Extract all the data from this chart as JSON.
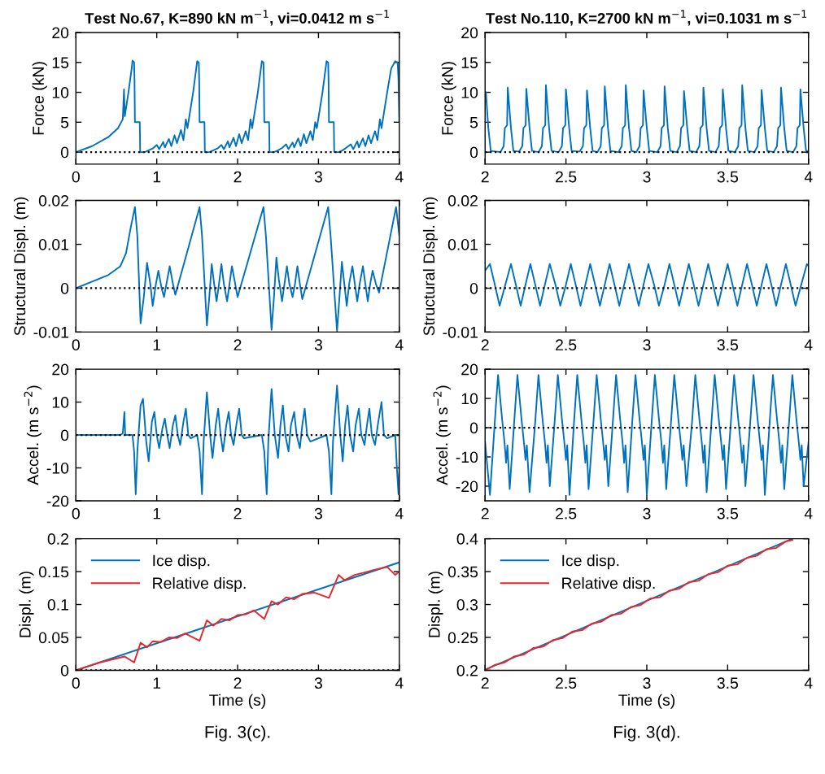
{
  "chart_data": [
    {
      "type": "line",
      "title": "Test No.67, K=890 kN m$^{−1}$, vi=0.0412 m s$^{−1}$",
      "ylabel": "Force (kN)",
      "xlim": [
        0,
        4
      ],
      "xticks": [
        0,
        1,
        2,
        3,
        4
      ],
      "ylim": [
        -2,
        20
      ],
      "yticks": [
        0,
        5,
        10,
        15,
        20
      ],
      "grid": false,
      "ref_lines": [
        {
          "axis": "y",
          "value": 0,
          "color": "#000000",
          "line_style": "dotted"
        }
      ],
      "series": [
        {
          "color": "#0072bd",
          "x": [
            0,
            0.2,
            0.4,
            0.52,
            0.58,
            0.595,
            0.605,
            0.65,
            0.69,
            0.7,
            0.72,
            0.725,
            0.73,
            0.79,
            0.795,
            0.85,
            0.9,
            0.95,
            1.0,
            1.03,
            1.08,
            1.1,
            1.15,
            1.18,
            1.22,
            1.25,
            1.3,
            1.33,
            1.36,
            1.38,
            1.45,
            1.5,
            1.52,
            1.525,
            1.53,
            1.59,
            1.595,
            1.65,
            1.7,
            1.75,
            1.8,
            1.83,
            1.88,
            1.9,
            1.95,
            1.98,
            2.02,
            2.05,
            2.1,
            2.13,
            2.16,
            2.18,
            2.25,
            2.3,
            2.32,
            2.325,
            2.33,
            2.39,
            2.395,
            2.45,
            2.5,
            2.55,
            2.6,
            2.63,
            2.68,
            2.7,
            2.75,
            2.78,
            2.82,
            2.85,
            2.9,
            2.93,
            2.96,
            2.98,
            3.05,
            3.1,
            3.12,
            3.125,
            3.13,
            3.19,
            3.195,
            3.25,
            3.3,
            3.35,
            3.4,
            3.43,
            3.48,
            3.5,
            3.55,
            3.58,
            3.62,
            3.65,
            3.7,
            3.73,
            3.76,
            3.78,
            3.85,
            3.9,
            3.95,
            3.98,
            3.99,
            4.0
          ],
          "values": [
            0,
            1,
            2.5,
            4,
            5.5,
            10.5,
            6,
            10,
            14,
            15.3,
            15,
            12,
            5,
            5,
            0,
            0,
            0.3,
            0.6,
            1.2,
            0.5,
            1.7,
            0.8,
            2.2,
            1,
            2.8,
            1.5,
            3.7,
            2,
            5.5,
            4,
            10,
            15.2,
            15,
            12,
            5,
            5,
            0,
            0,
            0.3,
            0.6,
            1.2,
            0.5,
            1.8,
            0.8,
            2.4,
            1,
            3,
            1.5,
            3.5,
            2,
            5.5,
            4,
            10,
            15.2,
            15,
            12,
            5,
            5,
            0,
            0,
            0.3,
            0.7,
            1.3,
            0.5,
            1.6,
            0.8,
            2.3,
            1,
            3,
            1.5,
            3.5,
            2,
            5,
            4,
            10,
            15.2,
            15,
            12,
            5,
            5,
            0,
            0,
            0.3,
            0.8,
            1.3,
            0.5,
            1.8,
            0.8,
            2.3,
            1,
            2.8,
            1.5,
            3.5,
            2,
            5.5,
            4,
            10,
            14,
            15.2,
            15,
            12,
            5
          ]
        }
      ]
    },
    {
      "type": "line",
      "title": "Test No.110, K=2700 kN m$^{−1}$, vi=0.1031 m s$^{−1}$",
      "ylabel": "Force (kN)",
      "xlim": [
        2,
        4
      ],
      "xticks": [
        2,
        2.5,
        3,
        3.5,
        4
      ],
      "ylim": [
        -2,
        20
      ],
      "yticks": [
        0,
        5,
        10,
        15,
        20
      ],
      "grid": false,
      "ref_lines": [
        {
          "axis": "y",
          "value": 0,
          "color": "#000000",
          "line_style": "dotted"
        }
      ],
      "series": [
        {
          "color": "#0072bd",
          "x": [
            2.0,
            2.005,
            2.02,
            2.035,
            2.095,
            2.115,
            2.122,
            2.136,
            2.14,
            2.16,
            2.175,
            2.21,
            2.23,
            2.237,
            2.251,
            2.255,
            2.275,
            2.29,
            2.331,
            2.351,
            2.358,
            2.372,
            2.376,
            2.396,
            2.411,
            2.455,
            2.475,
            2.482,
            2.496,
            2.5,
            2.52,
            2.535,
            2.585,
            2.605,
            2.612,
            2.626,
            2.63,
            2.65,
            2.665,
            2.695,
            2.715,
            2.722,
            2.736,
            2.74,
            2.76,
            2.775,
            2.825,
            2.845,
            2.852,
            2.866,
            2.87,
            2.89,
            2.905,
            2.935,
            2.955,
            2.962,
            2.976,
            2.98,
            3.0,
            3.015,
            3.065,
            3.085,
            3.092,
            3.106,
            3.11,
            3.13,
            3.145,
            3.185,
            3.205,
            3.212,
            3.226,
            3.23,
            3.25,
            3.265,
            3.305,
            3.325,
            3.332,
            3.346,
            3.35,
            3.37,
            3.385,
            3.425,
            3.445,
            3.452,
            3.466,
            3.47,
            3.49,
            3.505,
            3.545,
            3.565,
            3.572,
            3.586,
            3.59,
            3.61,
            3.625,
            3.665,
            3.685,
            3.692,
            3.706,
            3.71,
            3.73,
            3.745,
            3.785,
            3.805,
            3.812,
            3.826,
            3.83,
            3.85,
            3.865,
            3.905,
            3.925,
            3.932,
            3.946,
            3.95,
            3.97,
            3.985,
            4.0
          ],
          "values": [
            9,
            10,
            4,
            0.2,
            0,
            1,
            4,
            4.5,
            10.8,
            4,
            0.2,
            0.1,
            1,
            4,
            4.5,
            10.6,
            4,
            0.2,
            0,
            1,
            4,
            4.5,
            11.2,
            4,
            0.2,
            0,
            1,
            4,
            4.5,
            10.5,
            4,
            0.2,
            0.1,
            1,
            4,
            4.5,
            10.3,
            4,
            0.2,
            0,
            1,
            4,
            4.5,
            11,
            4,
            0.2,
            0,
            1,
            4,
            4.5,
            11.2,
            4,
            0.2,
            0,
            1,
            4,
            4.5,
            10.3,
            4,
            0.2,
            0,
            1,
            4,
            4.5,
            11,
            4,
            0.2,
            0,
            1,
            4,
            4.5,
            10.2,
            4,
            0.2,
            0,
            1,
            4,
            4.5,
            10.8,
            4,
            0.2,
            0,
            1,
            4,
            4.5,
            10.5,
            4,
            0.2,
            0,
            1,
            4,
            4.5,
            11.2,
            4,
            0.2,
            0,
            1,
            4,
            4.5,
            10.4,
            4,
            0.2,
            0,
            1,
            4,
            4.5,
            10.8,
            4,
            0.2,
            0,
            1,
            4,
            4.5,
            10.5,
            4,
            0.2,
            0.2
          ]
        }
      ]
    },
    {
      "type": "line",
      "ylabel": "Structural Displ. (m)",
      "xlim": [
        0,
        4
      ],
      "xticks": [
        0,
        1,
        2,
        3,
        4
      ],
      "ylim": [
        -0.01,
        0.02
      ],
      "yticks": [
        -0.01,
        0,
        0.01,
        0.02
      ],
      "grid": false,
      "ref_lines": [
        {
          "axis": "y",
          "value": 0,
          "color": "#000000",
          "line_style": "dotted"
        }
      ],
      "series": [
        {
          "color": "#0072bd",
          "x": [
            0,
            0.2,
            0.4,
            0.55,
            0.62,
            0.68,
            0.73,
            0.76,
            0.8,
            0.84,
            0.88,
            0.92,
            0.95,
            0.99,
            1.02,
            1.06,
            1.09,
            1.13,
            1.16,
            1.2,
            1.23,
            1.53,
            1.56,
            1.62,
            1.65,
            1.68,
            1.71,
            1.74,
            1.77,
            1.8,
            1.83,
            1.87,
            1.9,
            1.93,
            1.97,
            2.0,
            2.32,
            2.35,
            2.42,
            2.45,
            2.48,
            2.51,
            2.55,
            2.58,
            2.61,
            2.64,
            2.68,
            2.71,
            2.74,
            2.77,
            2.8,
            3.12,
            3.15,
            3.23,
            3.26,
            3.29,
            3.32,
            3.35,
            3.38,
            3.42,
            3.45,
            3.48,
            3.51,
            3.55,
            3.58,
            3.61,
            3.64,
            3.67,
            3.71,
            3.75,
            3.96,
            4.0
          ],
          "values": [
            0,
            0.0015,
            0.003,
            0.005,
            0.008,
            0.014,
            0.0185,
            0.012,
            -0.008,
            -0.002,
            0.0058,
            0.001,
            -0.004,
            0.001,
            0.004,
            0,
            -0.002,
            0.002,
            0.005,
            0.001,
            -0.0015,
            0.0185,
            0.012,
            -0.0085,
            -0.002,
            0.0055,
            0.001,
            -0.003,
            0.001,
            0.0055,
            0.001,
            -0.003,
            0.001,
            0.005,
            0.001,
            -0.002,
            0.0185,
            0.012,
            -0.0095,
            -0.002,
            0.007,
            0.002,
            -0.003,
            0.001,
            0.005,
            0.001,
            -0.002,
            0.001,
            0.005,
            0.001,
            -0.0025,
            0.0185,
            0.012,
            -0.0098,
            -0.002,
            0.006,
            0.001,
            -0.004,
            0.001,
            0.005,
            0.001,
            -0.003,
            0.001,
            0.005,
            0.001,
            -0.003,
            0.001,
            0.004,
            0.001,
            -0.001,
            0.0185,
            0.012
          ]
        }
      ]
    },
    {
      "type": "line",
      "ylabel": "Structural Displ. (m)",
      "xlim": [
        2,
        4
      ],
      "xticks": [
        2,
        2.5,
        3,
        3.5,
        4
      ],
      "ylim": [
        -0.01,
        0.02
      ],
      "yticks": [
        -0.01,
        0,
        0.01,
        0.02
      ],
      "grid": false,
      "ref_lines": [
        {
          "axis": "y",
          "value": 0,
          "color": "#000000",
          "line_style": "dotted"
        }
      ],
      "series": [
        {
          "color": "#0072bd",
          "x": [
            2.0,
            2.03,
            2.06,
            2.09,
            2.125,
            2.16,
            2.19,
            2.22,
            2.25,
            2.28,
            2.31,
            2.34,
            2.37,
            2.4,
            2.435,
            2.465,
            2.5,
            2.53,
            2.56,
            2.59,
            2.62,
            2.65,
            2.68,
            2.71,
            2.74,
            2.77,
            2.8,
            2.83,
            2.86,
            2.89,
            2.92,
            2.95,
            2.98,
            3.01,
            3.045,
            3.075,
            3.11,
            3.14,
            3.17,
            3.2,
            3.23,
            3.26,
            3.29,
            3.32,
            3.35,
            3.38,
            3.41,
            3.44,
            3.47,
            3.5,
            3.53,
            3.56,
            3.59,
            3.62,
            3.65,
            3.68,
            3.71,
            3.74,
            3.77,
            3.8,
            3.83,
            3.86,
            3.89,
            3.92,
            3.955,
            3.99,
            4.0
          ],
          "values": [
            0.004,
            0.0055,
            0.0008,
            -0.004,
            0.0008,
            0.0055,
            0.0008,
            -0.004,
            0.0008,
            0.0055,
            0.0008,
            -0.004,
            0.0008,
            0.0055,
            0.0008,
            -0.004,
            0.0008,
            0.0055,
            0.0008,
            -0.004,
            0.0008,
            0.0055,
            0.0008,
            -0.004,
            0.0008,
            0.0055,
            0.0008,
            -0.004,
            0.0008,
            0.0055,
            0.0008,
            -0.004,
            0.0008,
            0.0055,
            0.0008,
            -0.004,
            0.0008,
            0.0055,
            0.0008,
            -0.004,
            0.0008,
            0.0055,
            0.0008,
            -0.004,
            0.0008,
            0.0055,
            0.0008,
            -0.004,
            0.0008,
            0.0055,
            0.0008,
            -0.004,
            0.0008,
            0.0055,
            0.0008,
            -0.004,
            0.0008,
            0.0055,
            0.0008,
            -0.004,
            0.0008,
            0.0055,
            0.0008,
            -0.004,
            0.0008,
            0.0055,
            0.005
          ]
        }
      ]
    },
    {
      "type": "line",
      "ylabel": "Accel. (m s$^{−2}$)",
      "xlim": [
        0,
        4
      ],
      "xticks": [
        0,
        1,
        2,
        3,
        4
      ],
      "ylim": [
        -20,
        20
      ],
      "yticks": [
        -20,
        -10,
        0,
        10,
        20
      ],
      "grid": false,
      "ref_lines": [
        {
          "axis": "y",
          "value": 0,
          "color": "#000000",
          "line_style": "dotted"
        }
      ],
      "series": [
        {
          "color": "#0072bd",
          "x": [
            0,
            0.55,
            0.58,
            0.6,
            0.61,
            0.7,
            0.72,
            0.74,
            0.76,
            0.8,
            0.83,
            0.87,
            0.9,
            0.94,
            0.97,
            1.0,
            1.03,
            1.07,
            1.1,
            1.13,
            1.16,
            1.2,
            1.23,
            1.26,
            1.29,
            1.33,
            1.36,
            1.39,
            1.42,
            1.5,
            1.53,
            1.56,
            1.58,
            1.62,
            1.66,
            1.69,
            1.73,
            1.76,
            1.79,
            1.82,
            1.86,
            1.89,
            1.92,
            1.95,
            1.99,
            2.02,
            2.05,
            2.08,
            2.3,
            2.33,
            2.36,
            2.38,
            2.42,
            2.46,
            2.5,
            2.53,
            2.56,
            2.59,
            2.63,
            2.66,
            2.7,
            2.73,
            2.77,
            2.8,
            2.83,
            2.86,
            2.9,
            3.1,
            3.13,
            3.16,
            3.18,
            3.23,
            3.27,
            3.3,
            3.33,
            3.36,
            3.39,
            3.43,
            3.46,
            3.5,
            3.53,
            3.57,
            3.6,
            3.63,
            3.66,
            3.7,
            3.74,
            3.78,
            3.81,
            3.85,
            3.95,
            3.97,
            3.99,
            4.0
          ],
          "values": [
            0,
            0,
            0.5,
            7,
            0,
            0,
            -5,
            -18,
            -5,
            9,
            11,
            -2,
            -8,
            4,
            7,
            0,
            -4,
            2,
            5,
            0,
            -4,
            3,
            6,
            0,
            -3,
            4,
            8,
            0,
            -1,
            0,
            -5,
            -18,
            -2,
            13,
            0,
            -7,
            3,
            8,
            0,
            -5,
            3,
            7,
            0,
            -3,
            4,
            8,
            0,
            -1,
            0,
            -5,
            -18,
            -2,
            14,
            0,
            -7,
            3,
            9,
            0,
            -5,
            3,
            7,
            0,
            -4,
            3,
            8,
            0,
            -2,
            0,
            -5,
            -18,
            -2,
            15,
            0,
            -8,
            3,
            9,
            0,
            -5,
            3,
            8,
            0,
            -3,
            3,
            8,
            0,
            -3,
            4,
            10,
            0,
            -1,
            0,
            -10,
            -18,
            -10
          ]
        }
      ]
    },
    {
      "type": "line",
      "ylabel": "Accel. (m s$^{−2}$)",
      "xlim": [
        2,
        4
      ],
      "xticks": [
        2,
        2.5,
        3,
        3.5,
        4
      ],
      "ylim": [
        -25,
        20
      ],
      "yticks": [
        -20,
        -10,
        0,
        10,
        20
      ],
      "grid": false,
      "ref_lines": [
        {
          "axis": "y",
          "value": 0,
          "color": "#000000",
          "line_style": "dotted"
        }
      ],
      "series": [
        {
          "color": "#0072bd",
          "x": [
            2.0,
            2.015,
            2.03,
            2.06,
            2.08,
            2.105,
            2.12,
            2.13,
            2.138,
            2.152,
            2.18,
            2.2,
            2.225,
            2.24,
            2.25,
            2.258,
            2.275,
            2.31,
            2.33,
            2.355,
            2.37,
            2.38,
            2.388,
            2.4,
            2.43,
            2.45,
            2.475,
            2.49,
            2.5,
            2.508,
            2.522,
            2.55,
            2.57,
            2.595,
            2.61,
            2.62,
            2.628,
            2.64,
            2.67,
            2.69,
            2.715,
            2.73,
            2.74,
            2.748,
            2.762,
            2.79,
            2.81,
            2.835,
            2.85,
            2.86,
            2.868,
            2.882,
            2.91,
            2.93,
            2.955,
            2.97,
            2.98,
            2.988,
            3.0,
            3.03,
            3.05,
            3.075,
            3.09,
            3.1,
            3.108,
            3.12,
            3.15,
            3.17,
            3.195,
            3.21,
            3.22,
            3.228,
            3.245,
            3.28,
            3.3,
            3.325,
            3.34,
            3.35,
            3.358,
            3.37,
            3.4,
            3.42,
            3.445,
            3.46,
            3.47,
            3.478,
            3.49,
            3.52,
            3.54,
            3.565,
            3.58,
            3.59,
            3.598,
            3.61,
            3.64,
            3.66,
            3.685,
            3.7,
            3.71,
            3.718,
            3.73,
            3.76,
            3.78,
            3.805,
            3.82,
            3.83,
            3.838,
            3.85,
            3.88,
            3.9,
            3.925,
            3.94,
            3.95,
            3.958,
            3.97,
            4.0
          ],
          "values": [
            -5,
            -14,
            -23,
            2,
            18,
            3,
            -5,
            -12,
            -6,
            -21,
            2,
            18,
            3,
            -5,
            -11,
            -6,
            -22,
            2,
            18,
            3,
            -5,
            -12,
            -6,
            -20,
            2,
            18,
            3,
            -5,
            -11,
            -6,
            -23,
            2,
            18,
            3,
            -5,
            -12,
            -6,
            -21,
            2,
            18,
            3,
            -5,
            -11,
            -6,
            -20,
            2,
            18,
            3,
            -5,
            -12,
            -6,
            -22,
            2,
            18,
            3,
            -5,
            -11,
            -6,
            -23,
            2,
            18,
            3,
            -5,
            -12,
            -6,
            -21,
            2,
            18,
            3,
            -5,
            -11,
            -6,
            -20,
            2,
            18,
            3,
            -5,
            -12,
            -6,
            -22,
            2,
            18,
            3,
            -5,
            -11,
            -6,
            -21,
            2,
            18,
            3,
            -5,
            -12,
            -6,
            -20,
            2,
            18,
            3,
            -5,
            -11,
            -6,
            -23,
            2,
            18,
            3,
            -5,
            -12,
            -6,
            -21,
            2,
            18,
            3,
            -5,
            -11,
            -6,
            -20,
            -5
          ]
        }
      ]
    },
    {
      "type": "line",
      "ylabel": "Displ. (m)",
      "xlabel": "Time (s)",
      "xlim": [
        0,
        4
      ],
      "xticks": [
        0,
        1,
        2,
        3,
        4
      ],
      "ylim": [
        0,
        0.2
      ],
      "yticks": [
        0,
        0.05,
        0.1,
        0.15,
        0.2
      ],
      "grid": false,
      "legend": "top left",
      "annotations": [
        "Fig. 3(c)."
      ],
      "ref_lines": [
        {
          "axis": "y",
          "value": 0,
          "color": "#000000",
          "line_style": "dotted"
        }
      ],
      "series": [
        {
          "name": "Ice disp.",
          "color": "#0072bd",
          "x": [
            0,
            4
          ],
          "values": [
            0,
            0.164
          ]
        },
        {
          "name": "Relative disp.",
          "color": "#e8262b",
          "x": [
            0,
            0.3,
            0.6,
            0.72,
            0.8,
            0.88,
            0.95,
            1.05,
            1.15,
            1.25,
            1.35,
            1.53,
            1.62,
            1.7,
            1.8,
            1.9,
            2.0,
            2.1,
            2.2,
            2.33,
            2.42,
            2.5,
            2.6,
            2.7,
            2.8,
            2.95,
            3.13,
            3.25,
            3.32,
            3.45,
            3.55,
            3.7,
            3.85,
            3.95,
            4.0
          ],
          "values": [
            0,
            0.012,
            0.021,
            0.012,
            0.042,
            0.035,
            0.044,
            0.043,
            0.05,
            0.049,
            0.056,
            0.045,
            0.076,
            0.068,
            0.078,
            0.076,
            0.084,
            0.085,
            0.091,
            0.078,
            0.105,
            0.1,
            0.111,
            0.108,
            0.116,
            0.118,
            0.11,
            0.145,
            0.137,
            0.145,
            0.148,
            0.153,
            0.157,
            0.145,
            0.15
          ]
        }
      ]
    },
    {
      "type": "line",
      "ylabel": "Displ. (m)",
      "xlabel": "Time (s)",
      "xlim": [
        2,
        4
      ],
      "xticks": [
        2,
        2.5,
        3,
        3.5,
        4
      ],
      "ylim": [
        0.2,
        0.4
      ],
      "yticks": [
        0.2,
        0.25,
        0.3,
        0.35,
        0.4
      ],
      "grid": false,
      "legend": "top left",
      "annotations": [
        "Fig. 3(d)."
      ],
      "series": [
        {
          "name": "Ice disp.",
          "color": "#0072bd",
          "x": [
            2,
            3.9
          ],
          "values": [
            0.201,
            0.4
          ]
        },
        {
          "name": "Relative disp.",
          "color": "#e8262b",
          "x": [
            2.0,
            2.06,
            2.12,
            2.18,
            2.24,
            2.3,
            2.36,
            2.42,
            2.48,
            2.54,
            2.6,
            2.66,
            2.72,
            2.78,
            2.84,
            2.9,
            2.96,
            3.02,
            3.08,
            3.14,
            3.2,
            3.26,
            3.32,
            3.38,
            3.44,
            3.5,
            3.56,
            3.62,
            3.68,
            3.74,
            3.8,
            3.86,
            3.9
          ],
          "values": [
            0.2,
            0.208,
            0.212,
            0.221,
            0.224,
            0.234,
            0.236,
            0.246,
            0.249,
            0.259,
            0.261,
            0.271,
            0.274,
            0.284,
            0.286,
            0.296,
            0.299,
            0.309,
            0.311,
            0.321,
            0.324,
            0.334,
            0.336,
            0.346,
            0.349,
            0.359,
            0.361,
            0.371,
            0.374,
            0.384,
            0.386,
            0.396,
            0.398
          ]
        }
      ]
    }
  ]
}
